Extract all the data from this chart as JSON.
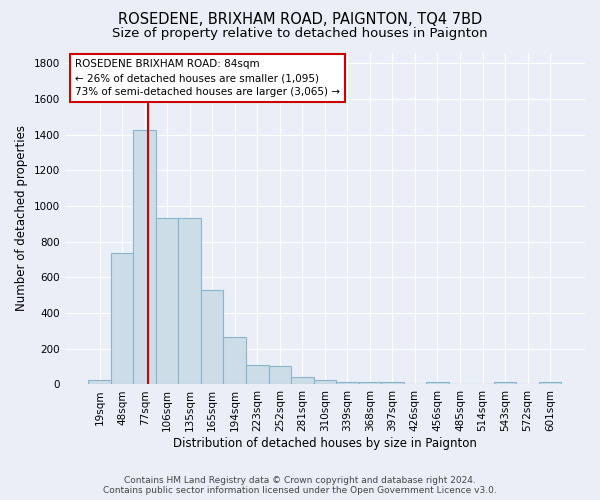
{
  "title": "ROSEDENE, BRIXHAM ROAD, PAIGNTON, TQ4 7BD",
  "subtitle": "Size of property relative to detached houses in Paignton",
  "xlabel": "Distribution of detached houses by size in Paignton",
  "ylabel": "Number of detached properties",
  "footnote1": "Contains HM Land Registry data © Crown copyright and database right 2024.",
  "footnote2": "Contains public sector information licensed under the Open Government Licence v3.0.",
  "categories": [
    "19sqm",
    "48sqm",
    "77sqm",
    "106sqm",
    "135sqm",
    "165sqm",
    "194sqm",
    "223sqm",
    "252sqm",
    "281sqm",
    "310sqm",
    "339sqm",
    "368sqm",
    "397sqm",
    "426sqm",
    "456sqm",
    "485sqm",
    "514sqm",
    "543sqm",
    "572sqm",
    "601sqm"
  ],
  "values": [
    25,
    735,
    1425,
    935,
    935,
    530,
    265,
    110,
    105,
    40,
    25,
    15,
    15,
    15,
    0,
    15,
    0,
    0,
    15,
    0,
    15
  ],
  "bar_color": "#ccdde8",
  "bar_edge_color": "#8ab4cc",
  "bar_edge_width": 0.8,
  "red_line_x": 2.15,
  "annotation_text": "ROSEDENE BRIXHAM ROAD: 84sqm\n← 26% of detached houses are smaller (1,095)\n73% of semi-detached houses are larger (3,065) →",
  "annotation_box_color": "#ffffff",
  "annotation_box_edge": "#cc0000",
  "ylim": [
    0,
    1860
  ],
  "yticks": [
    0,
    200,
    400,
    600,
    800,
    1000,
    1200,
    1400,
    1600,
    1800
  ],
  "bg_color": "#eaeff7",
  "title_fontsize": 10.5,
  "subtitle_fontsize": 9.5,
  "xlabel_fontsize": 8.5,
  "ylabel_fontsize": 8.5,
  "tick_fontsize": 7.5,
  "annot_fontsize": 7.5,
  "footnote_fontsize": 6.5
}
